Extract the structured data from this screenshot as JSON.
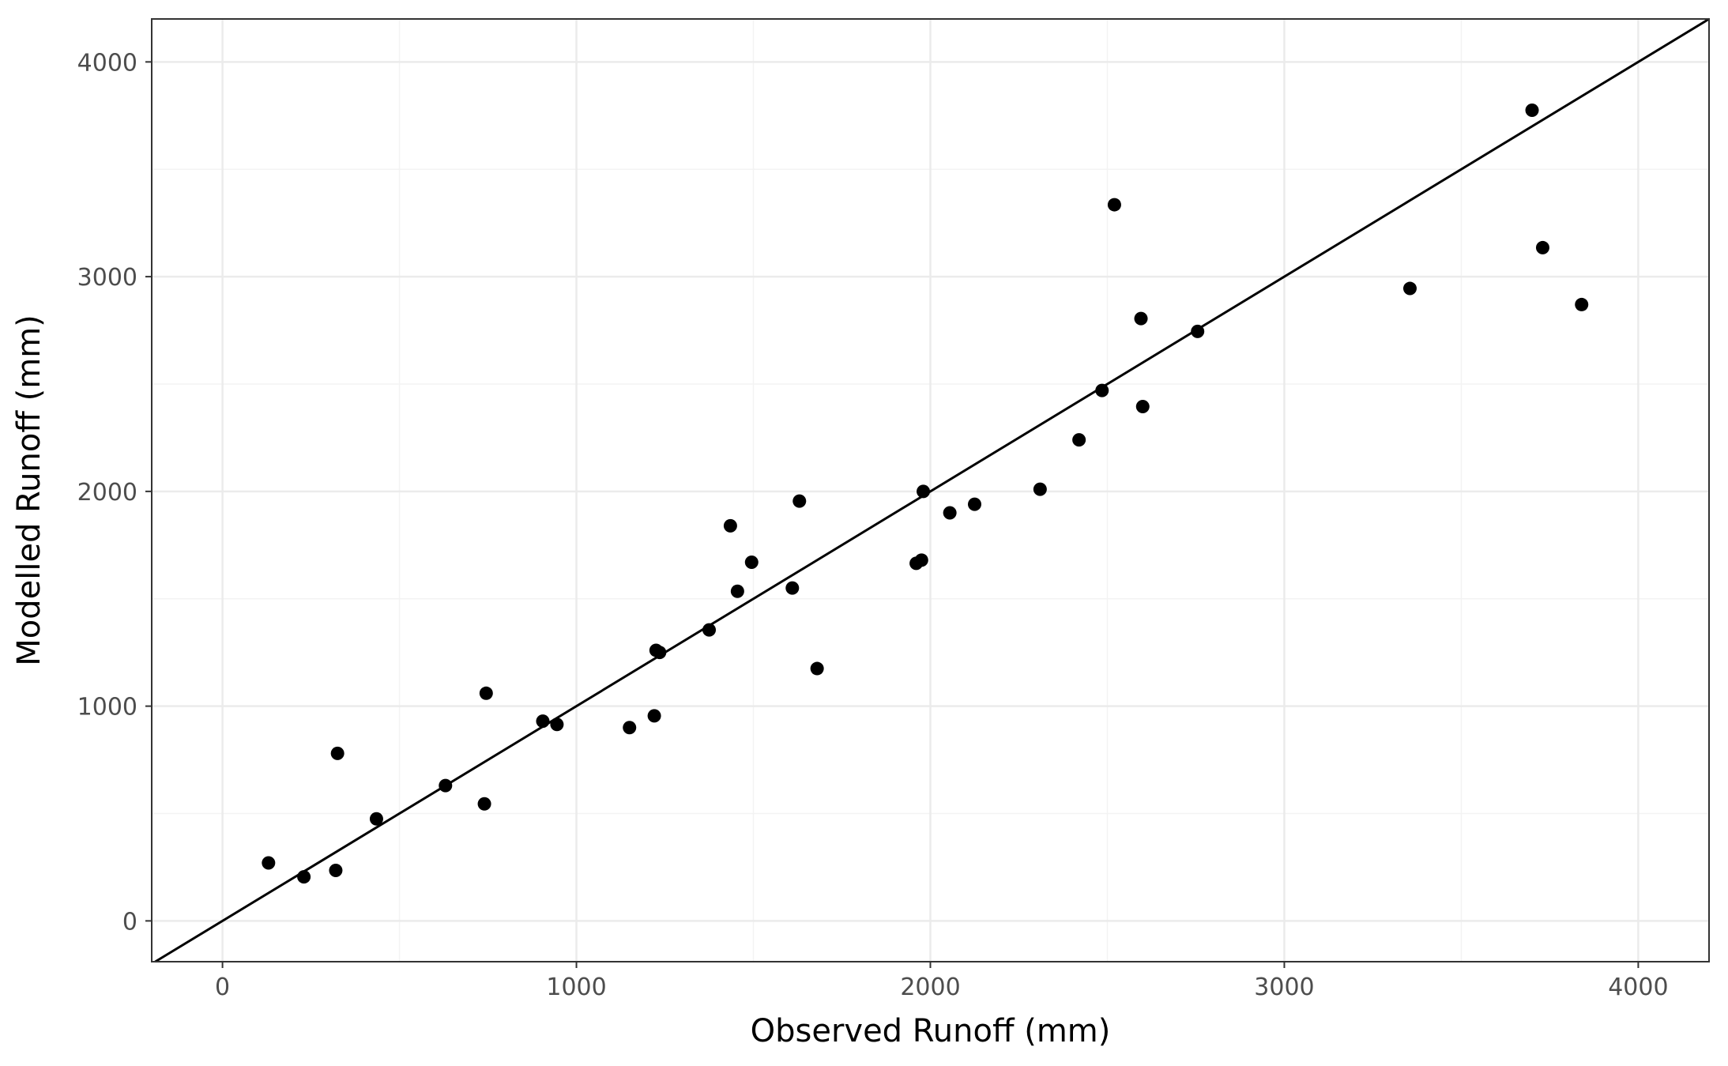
{
  "chart_data": {
    "type": "scatter",
    "title": "",
    "xlabel": "Observed Runoff (mm)",
    "ylabel": "Modelled Runoff (mm)",
    "xlim": [
      -200,
      4200
    ],
    "ylim": [
      -190,
      4200
    ],
    "x_ticks": [
      0,
      1000,
      2000,
      3000,
      4000
    ],
    "y_ticks": [
      0,
      1000,
      2000,
      3000,
      4000
    ],
    "x_tick_labels": [
      "0",
      "1000",
      "2000",
      "3000",
      "4000"
    ],
    "y_tick_labels": [
      "0",
      "1000",
      "2000",
      "3000",
      "4000"
    ],
    "grid": true,
    "reference_line": "y = x",
    "colors": {
      "point": "#000000",
      "line": "#000000",
      "grid_major": "#ebebeb",
      "grid_minor": "#f3f3f3",
      "panel_border": "#333333"
    },
    "points": [
      {
        "x": 130,
        "y": 270
      },
      {
        "x": 230,
        "y": 205
      },
      {
        "x": 320,
        "y": 235
      },
      {
        "x": 325,
        "y": 780
      },
      {
        "x": 435,
        "y": 475
      },
      {
        "x": 630,
        "y": 630
      },
      {
        "x": 740,
        "y": 545
      },
      {
        "x": 745,
        "y": 1060
      },
      {
        "x": 905,
        "y": 930
      },
      {
        "x": 945,
        "y": 915
      },
      {
        "x": 1150,
        "y": 900
      },
      {
        "x": 1220,
        "y": 955
      },
      {
        "x": 1225,
        "y": 1260
      },
      {
        "x": 1235,
        "y": 1250
      },
      {
        "x": 1375,
        "y": 1355
      },
      {
        "x": 1435,
        "y": 1840
      },
      {
        "x": 1455,
        "y": 1535
      },
      {
        "x": 1495,
        "y": 1670
      },
      {
        "x": 1610,
        "y": 1550
      },
      {
        "x": 1630,
        "y": 1955
      },
      {
        "x": 1680,
        "y": 1175
      },
      {
        "x": 1960,
        "y": 1665
      },
      {
        "x": 1975,
        "y": 1680
      },
      {
        "x": 1980,
        "y": 2000
      },
      {
        "x": 2055,
        "y": 1900
      },
      {
        "x": 2125,
        "y": 1940
      },
      {
        "x": 2310,
        "y": 2010
      },
      {
        "x": 2420,
        "y": 2240
      },
      {
        "x": 2485,
        "y": 2470
      },
      {
        "x": 2520,
        "y": 3335
      },
      {
        "x": 2595,
        "y": 2805
      },
      {
        "x": 2600,
        "y": 2395
      },
      {
        "x": 2755,
        "y": 2745
      },
      {
        "x": 3355,
        "y": 2945
      },
      {
        "x": 3700,
        "y": 3775
      },
      {
        "x": 3730,
        "y": 3135
      },
      {
        "x": 3840,
        "y": 2870
      }
    ]
  }
}
